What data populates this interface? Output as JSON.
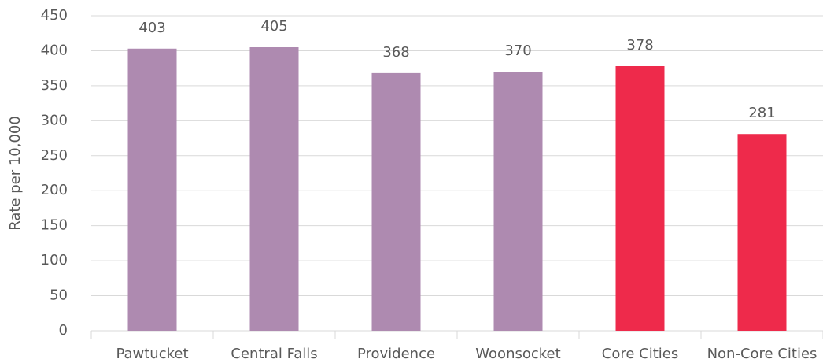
{
  "chart_data": {
    "type": "bar",
    "y_label": "Rate per 10,000",
    "categories": [
      "Pawtucket",
      "Central Falls",
      "Providence",
      "Woonsocket",
      "Core Cities",
      "Non-Core Cities"
    ],
    "values": [
      403,
      405,
      368,
      370,
      378,
      281
    ],
    "colors": [
      "#ae8ab0",
      "#ae8ab0",
      "#ae8ab0",
      "#ae8ab0",
      "#ee2a4b",
      "#ee2a4b"
    ],
    "ylim": [
      0,
      450
    ],
    "yticks": [
      0,
      50,
      100,
      150,
      200,
      250,
      300,
      350,
      400,
      450
    ],
    "grid": true
  }
}
